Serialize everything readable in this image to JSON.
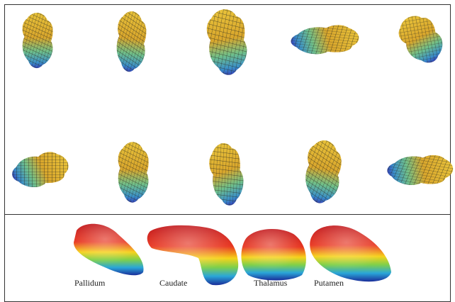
{
  "structures": [
    {
      "label": "Pallidum"
    },
    {
      "label": "Caudate"
    },
    {
      "label": "Thalamus"
    },
    {
      "label": "Putamen"
    }
  ]
}
